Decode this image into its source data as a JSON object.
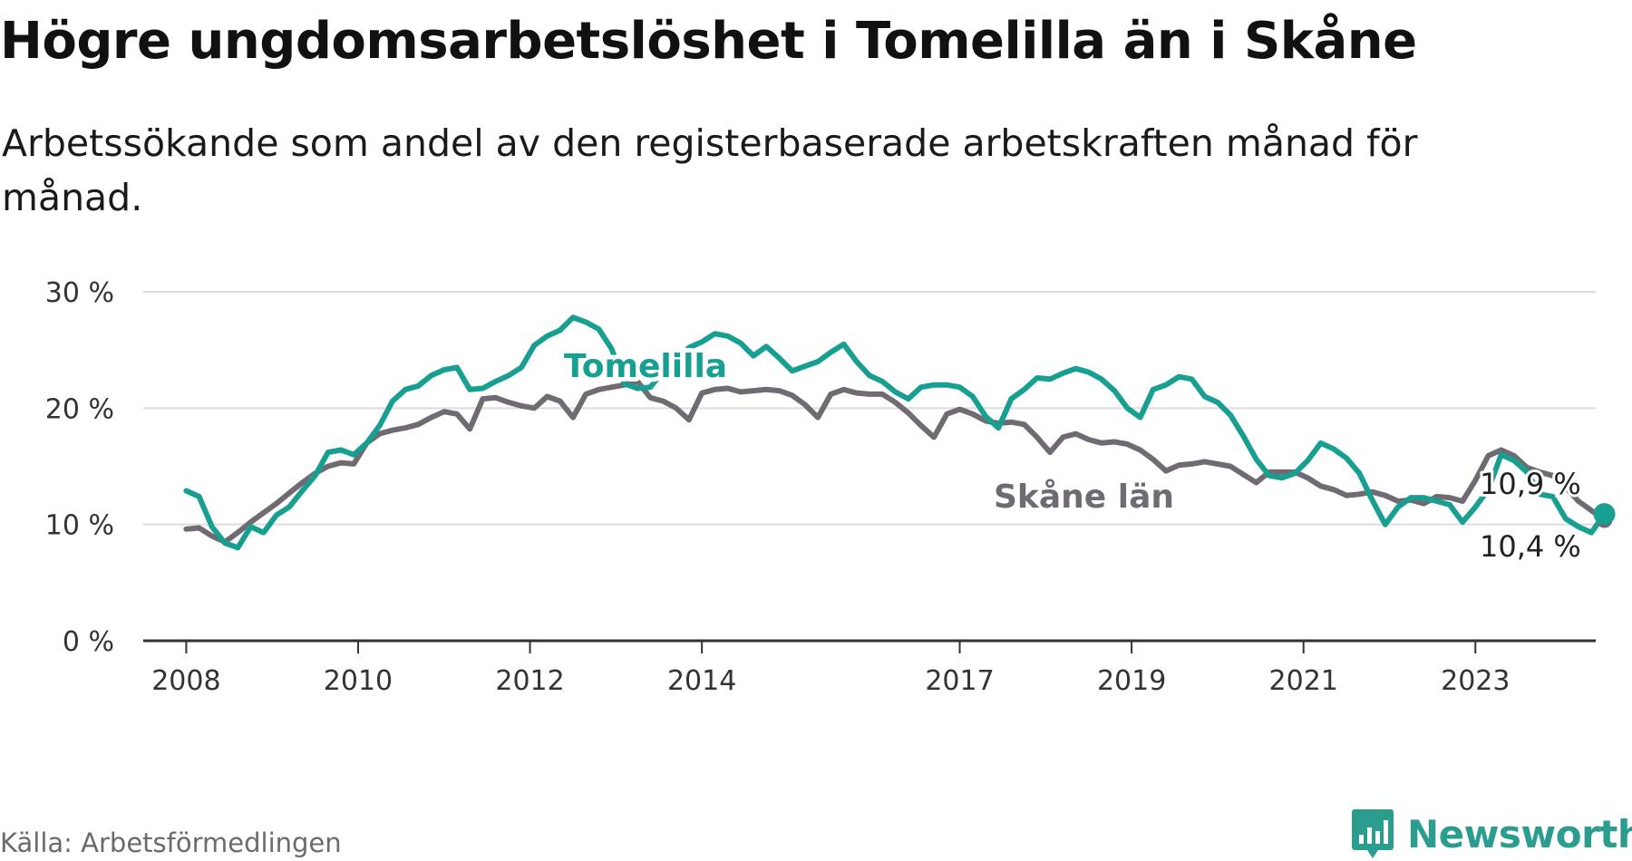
{
  "title": "Högre ungdomsarbetslöshet i Tomelilla än i Skåne",
  "subtitle": "Arbetssökande som andel av den registerbaserade arbetskraften månad för månad.",
  "source": "Källa: Arbetsförmedlingen",
  "brand": "Newsworthy",
  "colors": {
    "tomelilla": "#17a091",
    "skane": "#706b72",
    "grid": "#dddddd",
    "axis": "#333333"
  },
  "chart_data": {
    "type": "line",
    "ylim": [
      0,
      30
    ],
    "xlim": [
      2007.5,
      2024.4
    ],
    "y_ticks": [
      0,
      10,
      20,
      30
    ],
    "y_tick_labels": [
      "0 %",
      "10 %",
      "20 %",
      "30 %"
    ],
    "x_ticks": [
      2008,
      2010,
      2012,
      2014,
      2017,
      2019,
      2021,
      2023
    ],
    "x_tick_labels": [
      "2008",
      "2010",
      "2012",
      "2014",
      "2017",
      "2019",
      "2021",
      "2023"
    ],
    "series": [
      {
        "name": "Skåne län",
        "label": "Skåne län",
        "end_label": "10,4 %",
        "end_value": 10.4,
        "points": [
          [
            2008.0,
            9.6
          ],
          [
            2008.15,
            9.7
          ],
          [
            2008.3,
            9.0
          ],
          [
            2008.45,
            8.5
          ],
          [
            2008.6,
            9.3
          ],
          [
            2008.75,
            10.2
          ],
          [
            2008.9,
            11.0
          ],
          [
            2009.05,
            11.8
          ],
          [
            2009.2,
            12.7
          ],
          [
            2009.35,
            13.6
          ],
          [
            2009.5,
            14.4
          ],
          [
            2009.65,
            15.0
          ],
          [
            2009.8,
            15.3
          ],
          [
            2009.95,
            15.2
          ],
          [
            2010.1,
            17.0
          ],
          [
            2010.25,
            17.8
          ],
          [
            2010.4,
            18.1
          ],
          [
            2010.55,
            18.3
          ],
          [
            2010.7,
            18.6
          ],
          [
            2010.85,
            19.2
          ],
          [
            2011.0,
            19.7
          ],
          [
            2011.15,
            19.5
          ],
          [
            2011.3,
            18.2
          ],
          [
            2011.45,
            20.8
          ],
          [
            2011.6,
            20.9
          ],
          [
            2011.75,
            20.5
          ],
          [
            2011.9,
            20.2
          ],
          [
            2012.05,
            20.0
          ],
          [
            2012.2,
            21.0
          ],
          [
            2012.35,
            20.6
          ],
          [
            2012.5,
            19.2
          ],
          [
            2012.65,
            21.2
          ],
          [
            2012.8,
            21.6
          ],
          [
            2012.95,
            21.8
          ],
          [
            2013.1,
            22.0
          ],
          [
            2013.25,
            22.3
          ],
          [
            2013.4,
            20.9
          ],
          [
            2013.55,
            20.6
          ],
          [
            2013.7,
            20.0
          ],
          [
            2013.85,
            19.0
          ],
          [
            2014.0,
            21.3
          ],
          [
            2014.15,
            21.6
          ],
          [
            2014.3,
            21.7
          ],
          [
            2014.45,
            21.4
          ],
          [
            2014.6,
            21.5
          ],
          [
            2014.75,
            21.6
          ],
          [
            2014.9,
            21.5
          ],
          [
            2015.05,
            21.1
          ],
          [
            2015.2,
            20.3
          ],
          [
            2015.35,
            19.2
          ],
          [
            2015.5,
            21.2
          ],
          [
            2015.65,
            21.6
          ],
          [
            2015.8,
            21.3
          ],
          [
            2015.95,
            21.2
          ],
          [
            2016.1,
            21.2
          ],
          [
            2016.25,
            20.5
          ],
          [
            2016.4,
            19.6
          ],
          [
            2016.55,
            18.5
          ],
          [
            2016.7,
            17.5
          ],
          [
            2016.85,
            19.5
          ],
          [
            2017.0,
            19.9
          ],
          [
            2017.15,
            19.5
          ],
          [
            2017.3,
            18.9
          ],
          [
            2017.45,
            18.7
          ],
          [
            2017.6,
            18.8
          ],
          [
            2017.75,
            18.6
          ],
          [
            2017.9,
            17.5
          ],
          [
            2018.05,
            16.2
          ],
          [
            2018.2,
            17.5
          ],
          [
            2018.35,
            17.8
          ],
          [
            2018.5,
            17.3
          ],
          [
            2018.65,
            17.0
          ],
          [
            2018.8,
            17.1
          ],
          [
            2018.95,
            16.9
          ],
          [
            2019.1,
            16.4
          ],
          [
            2019.25,
            15.6
          ],
          [
            2019.4,
            14.6
          ],
          [
            2019.55,
            15.1
          ],
          [
            2019.7,
            15.2
          ],
          [
            2019.85,
            15.4
          ],
          [
            2020.0,
            15.2
          ],
          [
            2020.15,
            15.0
          ],
          [
            2020.3,
            14.3
          ],
          [
            2020.45,
            13.6
          ],
          [
            2020.6,
            14.5
          ],
          [
            2020.75,
            14.5
          ],
          [
            2020.9,
            14.5
          ],
          [
            2021.05,
            14.0
          ],
          [
            2021.2,
            13.3
          ],
          [
            2021.35,
            13.0
          ],
          [
            2021.5,
            12.5
          ],
          [
            2021.65,
            12.6
          ],
          [
            2021.8,
            12.8
          ],
          [
            2021.95,
            12.5
          ],
          [
            2022.1,
            12.0
          ],
          [
            2022.25,
            12.1
          ],
          [
            2022.4,
            11.8
          ],
          [
            2022.55,
            12.4
          ],
          [
            2022.7,
            12.3
          ],
          [
            2022.85,
            12.0
          ],
          [
            2023.0,
            13.8
          ],
          [
            2023.15,
            15.9
          ],
          [
            2023.3,
            16.4
          ],
          [
            2023.45,
            15.9
          ],
          [
            2023.6,
            14.9
          ],
          [
            2023.75,
            14.5
          ],
          [
            2023.9,
            14.2
          ],
          [
            2024.05,
            13.2
          ],
          [
            2024.2,
            12.0
          ],
          [
            2024.35,
            11.2
          ],
          [
            2024.5,
            10.4
          ]
        ]
      },
      {
        "name": "Tomelilla",
        "label": "Tomelilla",
        "end_label": "10,9 %",
        "end_value": 10.9,
        "points": [
          [
            2008.0,
            12.9
          ],
          [
            2008.15,
            12.4
          ],
          [
            2008.3,
            9.8
          ],
          [
            2008.45,
            8.4
          ],
          [
            2008.6,
            8.0
          ],
          [
            2008.75,
            9.8
          ],
          [
            2008.9,
            9.3
          ],
          [
            2009.05,
            10.8
          ],
          [
            2009.2,
            11.5
          ],
          [
            2009.35,
            12.9
          ],
          [
            2009.5,
            14.2
          ],
          [
            2009.65,
            16.2
          ],
          [
            2009.8,
            16.4
          ],
          [
            2009.95,
            16.0
          ],
          [
            2010.1,
            17.0
          ],
          [
            2010.25,
            18.5
          ],
          [
            2010.4,
            20.6
          ],
          [
            2010.55,
            21.6
          ],
          [
            2010.7,
            21.9
          ],
          [
            2010.85,
            22.8
          ],
          [
            2011.0,
            23.3
          ],
          [
            2011.15,
            23.5
          ],
          [
            2011.3,
            21.6
          ],
          [
            2011.45,
            21.7
          ],
          [
            2011.6,
            22.3
          ],
          [
            2011.75,
            22.8
          ],
          [
            2011.9,
            23.5
          ],
          [
            2012.05,
            25.4
          ],
          [
            2012.2,
            26.2
          ],
          [
            2012.35,
            26.7
          ],
          [
            2012.5,
            27.8
          ],
          [
            2012.65,
            27.4
          ],
          [
            2012.8,
            26.8
          ],
          [
            2012.95,
            25.1
          ],
          [
            2013.1,
            22.1
          ],
          [
            2013.25,
            21.7
          ],
          [
            2013.4,
            21.8
          ],
          [
            2013.55,
            23.2
          ],
          [
            2013.7,
            24.0
          ],
          [
            2013.85,
            25.2
          ],
          [
            2014.0,
            25.7
          ],
          [
            2014.15,
            26.4
          ],
          [
            2014.3,
            26.2
          ],
          [
            2014.45,
            25.6
          ],
          [
            2014.6,
            24.5
          ],
          [
            2014.75,
            25.3
          ],
          [
            2014.9,
            24.3
          ],
          [
            2015.05,
            23.2
          ],
          [
            2015.2,
            23.6
          ],
          [
            2015.35,
            24.0
          ],
          [
            2015.5,
            24.8
          ],
          [
            2015.65,
            25.5
          ],
          [
            2015.8,
            24.0
          ],
          [
            2015.95,
            22.8
          ],
          [
            2016.1,
            22.3
          ],
          [
            2016.25,
            21.4
          ],
          [
            2016.4,
            20.8
          ],
          [
            2016.55,
            21.8
          ],
          [
            2016.7,
            22.0
          ],
          [
            2016.85,
            22.0
          ],
          [
            2017.0,
            21.8
          ],
          [
            2017.15,
            21.0
          ],
          [
            2017.3,
            19.3
          ],
          [
            2017.45,
            18.3
          ],
          [
            2017.6,
            20.8
          ],
          [
            2017.75,
            21.6
          ],
          [
            2017.9,
            22.6
          ],
          [
            2018.05,
            22.5
          ],
          [
            2018.2,
            23.0
          ],
          [
            2018.35,
            23.4
          ],
          [
            2018.5,
            23.1
          ],
          [
            2018.65,
            22.5
          ],
          [
            2018.8,
            21.5
          ],
          [
            2018.95,
            20.0
          ],
          [
            2019.1,
            19.2
          ],
          [
            2019.25,
            21.6
          ],
          [
            2019.4,
            22.0
          ],
          [
            2019.55,
            22.7
          ],
          [
            2019.7,
            22.5
          ],
          [
            2019.85,
            21.0
          ],
          [
            2020.0,
            20.5
          ],
          [
            2020.15,
            19.4
          ],
          [
            2020.3,
            17.6
          ],
          [
            2020.45,
            15.6
          ],
          [
            2020.6,
            14.2
          ],
          [
            2020.75,
            14.0
          ],
          [
            2020.9,
            14.4
          ],
          [
            2021.05,
            15.5
          ],
          [
            2021.2,
            17.0
          ],
          [
            2021.35,
            16.5
          ],
          [
            2021.5,
            15.7
          ],
          [
            2021.65,
            14.4
          ],
          [
            2021.8,
            12.1
          ],
          [
            2021.95,
            10.0
          ],
          [
            2022.1,
            11.5
          ],
          [
            2022.25,
            12.3
          ],
          [
            2022.4,
            12.3
          ],
          [
            2022.55,
            12.0
          ],
          [
            2022.7,
            11.7
          ],
          [
            2022.85,
            10.2
          ],
          [
            2023.0,
            11.5
          ],
          [
            2023.15,
            13.0
          ],
          [
            2023.3,
            16.0
          ],
          [
            2023.45,
            15.5
          ],
          [
            2023.6,
            14.5
          ],
          [
            2023.75,
            12.6
          ],
          [
            2023.9,
            12.4
          ],
          [
            2024.05,
            10.5
          ],
          [
            2024.2,
            9.8
          ],
          [
            2024.35,
            9.3
          ],
          [
            2024.5,
            10.9
          ]
        ]
      }
    ]
  }
}
